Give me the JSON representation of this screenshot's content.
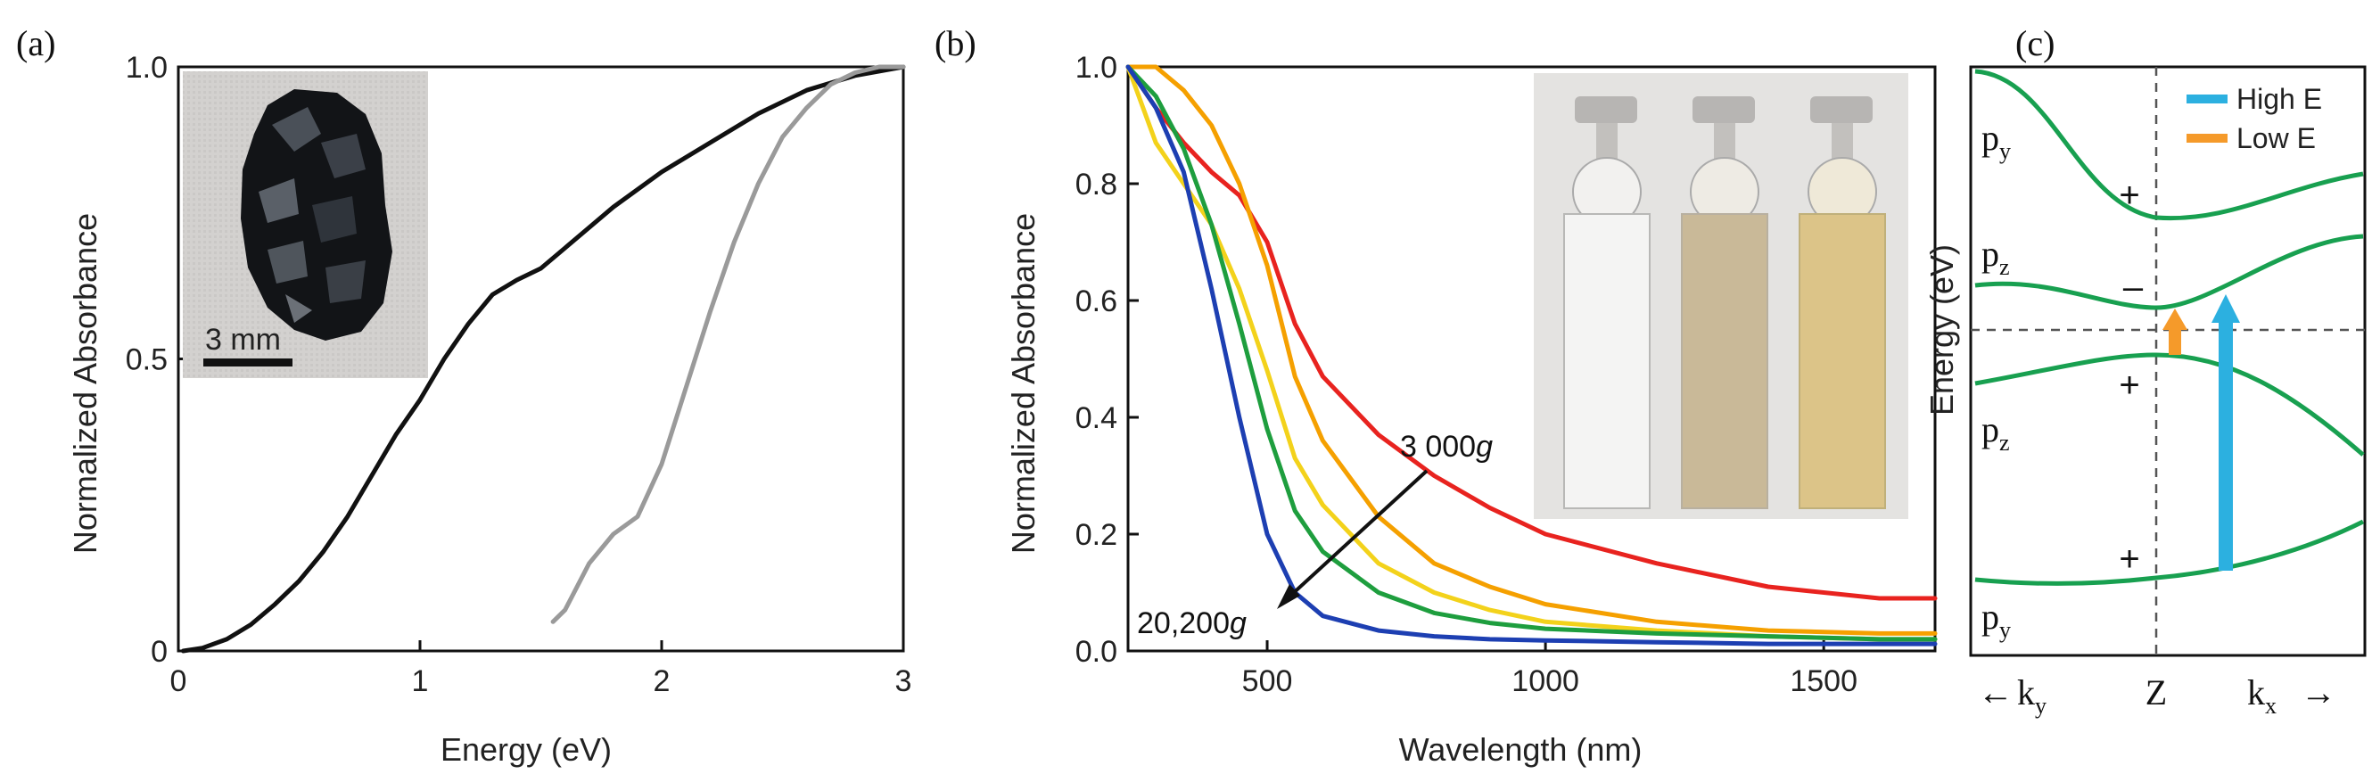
{
  "chart_data": [
    {
      "panel": "(a)",
      "type": "line",
      "xlabel": "Energy (eV)",
      "ylabel": "Normalized Absorbance",
      "xlim": [
        0,
        3
      ],
      "ylim": [
        0,
        1
      ],
      "xticks": [
        0,
        1,
        2,
        3
      ],
      "yticks": [
        {
          "v": 0,
          "label": "0"
        },
        {
          "v": 0.5,
          "label": "0.5"
        },
        {
          "v": 1,
          "label": "1.0"
        }
      ],
      "inset": {
        "scale_label": "3 mm"
      },
      "series": [
        {
          "color": "#111111",
          "x": [
            0.02,
            0.1,
            0.2,
            0.3,
            0.4,
            0.5,
            0.6,
            0.7,
            0.8,
            0.9,
            1.0,
            1.1,
            1.2,
            1.3,
            1.4,
            1.5,
            1.6,
            1.8,
            2.0,
            2.2,
            2.4,
            2.6,
            2.8,
            3.0
          ],
          "y": [
            0.0,
            0.005,
            0.02,
            0.045,
            0.08,
            0.12,
            0.17,
            0.23,
            0.3,
            0.37,
            0.43,
            0.5,
            0.56,
            0.61,
            0.635,
            0.655,
            0.69,
            0.76,
            0.82,
            0.87,
            0.92,
            0.96,
            0.985,
            1.0
          ]
        },
        {
          "color": "#9a9a9a",
          "x": [
            1.55,
            1.6,
            1.7,
            1.8,
            1.9,
            2.0,
            2.1,
            2.2,
            2.3,
            2.4,
            2.5,
            2.6,
            2.7,
            2.8,
            2.9,
            3.0
          ],
          "y": [
            0.05,
            0.07,
            0.15,
            0.2,
            0.23,
            0.32,
            0.45,
            0.58,
            0.7,
            0.8,
            0.88,
            0.93,
            0.97,
            0.99,
            1.0,
            1.0
          ]
        }
      ]
    },
    {
      "panel": "(b)",
      "type": "line",
      "xlabel": "Wavelength (nm)",
      "ylabel": "Normalized Absorbance",
      "xlim": [
        250,
        1700
      ],
      "ylim": [
        0,
        1
      ],
      "xticks": [
        500,
        1000,
        1500
      ],
      "yticks": [
        {
          "v": 0,
          "label": "0.0"
        },
        {
          "v": 0.2,
          "label": "0.2"
        },
        {
          "v": 0.4,
          "label": "0.4"
        },
        {
          "v": 0.6,
          "label": "0.6"
        },
        {
          "v": 0.8,
          "label": "0.8"
        },
        {
          "v": 1,
          "label": "1.0"
        }
      ],
      "annotations": {
        "top_value": "3 000",
        "bottom_value": "20,200",
        "unit": "g"
      },
      "series": [
        {
          "color": "#e8231f",
          "x": [
            250,
            300,
            350,
            400,
            450,
            500,
            550,
            600,
            700,
            800,
            900,
            1000,
            1200,
            1400,
            1600,
            1700
          ],
          "y": [
            1.0,
            0.93,
            0.87,
            0.82,
            0.78,
            0.7,
            0.56,
            0.47,
            0.37,
            0.3,
            0.245,
            0.2,
            0.15,
            0.11,
            0.09,
            0.09
          ]
        },
        {
          "color": "#f5a000",
          "x": [
            250,
            300,
            350,
            400,
            450,
            500,
            550,
            600,
            700,
            800,
            900,
            1000,
            1200,
            1400,
            1600,
            1700
          ],
          "y": [
            1.0,
            1.0,
            0.96,
            0.9,
            0.8,
            0.66,
            0.47,
            0.36,
            0.23,
            0.15,
            0.11,
            0.08,
            0.05,
            0.035,
            0.03,
            0.03
          ]
        },
        {
          "color": "#f3d21b",
          "x": [
            250,
            300,
            350,
            400,
            450,
            500,
            550,
            600,
            700,
            800,
            900,
            1000,
            1200,
            1400,
            1600,
            1700
          ],
          "y": [
            1.0,
            0.87,
            0.8,
            0.73,
            0.62,
            0.48,
            0.33,
            0.25,
            0.15,
            0.1,
            0.07,
            0.05,
            0.035,
            0.025,
            0.02,
            0.02
          ]
        },
        {
          "color": "#1e9e3e",
          "x": [
            250,
            300,
            350,
            400,
            450,
            500,
            550,
            600,
            700,
            800,
            900,
            1000,
            1200,
            1400,
            1600,
            1700
          ],
          "y": [
            1.0,
            0.95,
            0.86,
            0.73,
            0.56,
            0.38,
            0.24,
            0.17,
            0.1,
            0.065,
            0.048,
            0.038,
            0.03,
            0.025,
            0.02,
            0.02
          ]
        },
        {
          "color": "#1d3fb2",
          "x": [
            250,
            300,
            350,
            400,
            450,
            500,
            550,
            600,
            700,
            800,
            900,
            1000,
            1200,
            1400,
            1600,
            1700
          ],
          "y": [
            1.0,
            0.93,
            0.82,
            0.62,
            0.4,
            0.2,
            0.1,
            0.06,
            0.035,
            0.025,
            0.02,
            0.018,
            0.015,
            0.012,
            0.012,
            0.012
          ]
        }
      ]
    },
    {
      "panel": "(c)",
      "type": "diagram",
      "ylabel": "Energy (eV)",
      "xlabels": {
        "left_arrow": "←",
        "ky": "k",
        "ky_sub": "y",
        "z": "Z",
        "kx": "k",
        "kx_sub": "x",
        "right_arrow": "→"
      },
      "legend": [
        {
          "label": "High E",
          "color": "#2cb0e0"
        },
        {
          "label": "Low E",
          "color": "#f59a2a"
        }
      ],
      "bands": [
        {
          "orbital": "p",
          "sub": "y",
          "sign": "+"
        },
        {
          "orbital": "p",
          "sub": "z",
          "sign": "–"
        },
        {
          "orbital": "p",
          "sub": "z",
          "sign": "+"
        },
        {
          "orbital": "p",
          "sub": "y",
          "sign": "+"
        }
      ],
      "band_color": "#18a050"
    }
  ]
}
